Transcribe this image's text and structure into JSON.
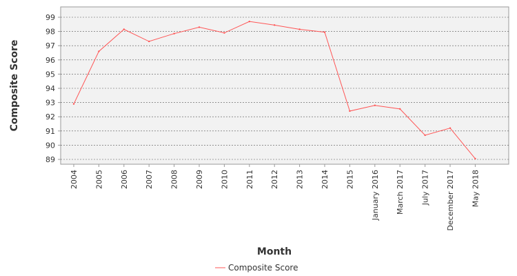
{
  "chart_data": {
    "type": "line",
    "title": "",
    "xlabel": "Month",
    "ylabel": "Composite Score",
    "categories": [
      "2004",
      "2005",
      "2006",
      "2007",
      "2008",
      "2009",
      "2010",
      "2011",
      "2012",
      "2013",
      "2014",
      "2015",
      "January 2016",
      "March 2017",
      "July 2017",
      "December 2017",
      "May 2018"
    ],
    "series": [
      {
        "name": "Composite Score",
        "color": "#ff5555",
        "values": [
          92.9,
          96.6,
          98.15,
          97.3,
          97.85,
          98.3,
          97.9,
          98.7,
          98.45,
          98.15,
          97.95,
          92.4,
          92.8,
          92.55,
          90.7,
          91.2,
          89.05
        ]
      }
    ],
    "ylim": [
      88.5,
      99.6
    ],
    "yticks": [
      89,
      90,
      91,
      92,
      93,
      94,
      95,
      96,
      97,
      98,
      99
    ],
    "grid": true,
    "legend": "bottom-center"
  }
}
